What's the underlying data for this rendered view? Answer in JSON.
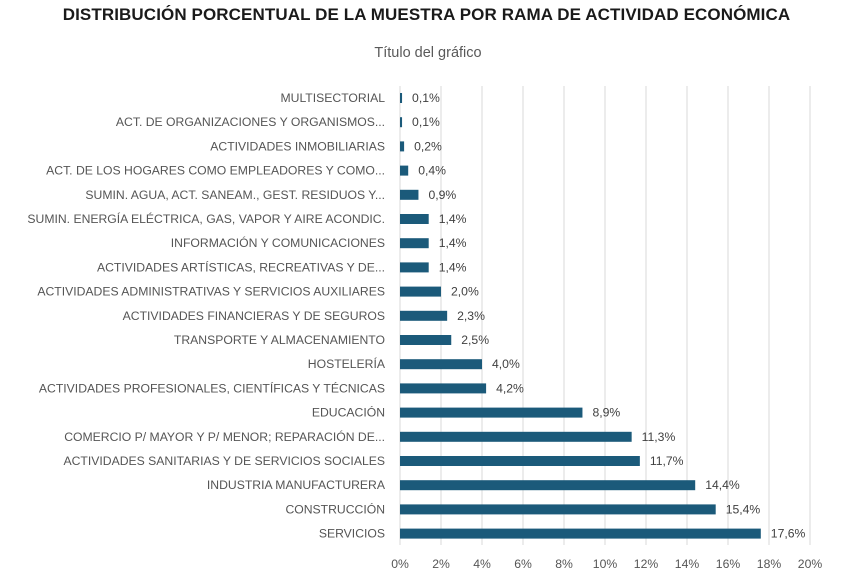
{
  "title": "DISTRIBUCIÓN PORCENTUAL DE LA MUESTRA POR RAMA DE ACTIVIDAD ECONÓMICA",
  "chart_data": {
    "type": "bar",
    "orientation": "horizontal",
    "title": "Título del gráfico",
    "categories": [
      "MULTISECTORIAL",
      "ACT. DE ORGANIZACIONES Y ORGANISMOS...",
      "ACTIVIDADES INMOBILIARIAS",
      "ACT. DE LOS HOGARES COMO EMPLEADORES Y COMO...",
      "SUMIN. AGUA, ACT. SANEAM., GEST. RESIDUOS Y...",
      "SUMIN. ENERGÍA ELÉCTRICA, GAS, VAPOR Y AIRE ACONDIC.",
      "INFORMACIÓN Y COMUNICACIONES",
      "ACTIVIDADES ARTÍSTICAS, RECREATIVAS Y DE...",
      "ACTIVIDADES ADMINISTRATIVAS Y SERVICIOS AUXILIARES",
      "ACTIVIDADES FINANCIERAS Y DE SEGUROS",
      "TRANSPORTE Y ALMACENAMIENTO",
      "HOSTELERÍA",
      "ACTIVIDADES PROFESIONALES, CIENTÍFICAS Y TÉCNICAS",
      "EDUCACIÓN",
      "COMERCIO P/ MAYOR Y P/ MENOR; REPARACIÓN DE...",
      "ACTIVIDADES SANITARIAS Y DE SERVICIOS SOCIALES",
      "INDUSTRIA MANUFACTURERA",
      "CONSTRUCCIÓN",
      "SERVICIOS"
    ],
    "values": [
      0.1,
      0.1,
      0.2,
      0.4,
      0.9,
      1.4,
      1.4,
      1.4,
      2.0,
      2.3,
      2.5,
      4.0,
      4.2,
      8.9,
      11.3,
      11.7,
      14.4,
      15.4,
      17.6
    ],
    "value_labels": [
      "0,1%",
      "0,1%",
      "0,2%",
      "0,4%",
      "0,9%",
      "1,4%",
      "1,4%",
      "1,4%",
      "2,0%",
      "2,3%",
      "2,5%",
      "4,0%",
      "4,2%",
      "8,9%",
      "11,3%",
      "11,7%",
      "14,4%",
      "15,4%",
      "17,6%"
    ],
    "xlim": [
      0,
      20
    ],
    "xticks": [
      0,
      2,
      4,
      6,
      8,
      10,
      12,
      14,
      16,
      18,
      20
    ],
    "xtick_labels": [
      "0%",
      "2%",
      "4%",
      "6%",
      "8%",
      "10%",
      "12%",
      "14%",
      "16%",
      "18%",
      "20%"
    ],
    "xlabel": "",
    "ylabel": "",
    "grid": true,
    "legend": "none",
    "bar_color": "#1b5a7a",
    "grid_color": "#d9d9d9"
  }
}
